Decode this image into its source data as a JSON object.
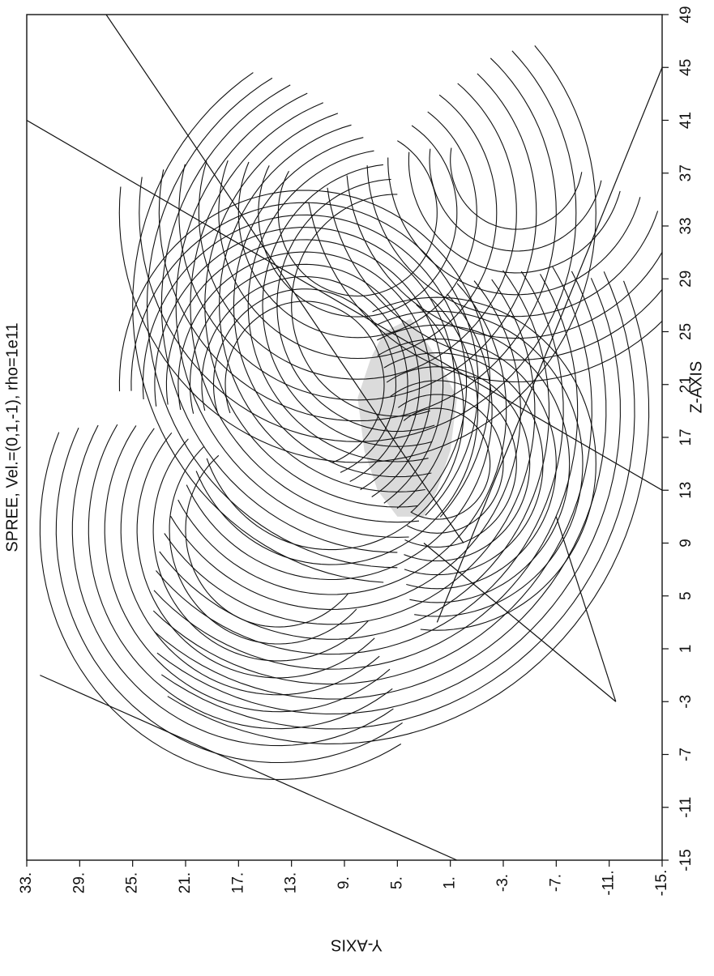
{
  "chart_data": {
    "type": "line",
    "title": "SPREE, Vel.=(0,1,-1), rho=1e11",
    "xlabel": "Z-AXIS",
    "ylabel": "Y-AXIS",
    "x_ticks": [
      "-15",
      "-11",
      "-7",
      "-3",
      "1",
      "5",
      "9",
      "13",
      "17",
      "21",
      "25",
      "29",
      "33",
      "37",
      "41",
      "45",
      "49"
    ],
    "y_ticks": [
      "33.",
      "29.",
      "25.",
      "21.",
      "17.",
      "13.",
      "9.",
      "5.",
      "1.",
      "-3.",
      "-7.",
      "-11.",
      "-15."
    ],
    "xlim": [
      -15,
      49
    ],
    "ylim": [
      -15,
      33
    ],
    "grid": false,
    "orientation": "rotated 90 degrees counter-clockwise",
    "line_color": "#111111",
    "shadow_region_color": "#bdbdbd",
    "trajectory_families": [
      {
        "name": "",
        "center": [
          19,
          10
        ],
        "radii": [
          10,
          24
        ],
        "count": 14,
        "start_deg": 110,
        "end_deg": 320
      },
      {
        "name": "",
        "center": [
          21,
          12
        ],
        "radii": [
          6,
          14
        ],
        "count": 10,
        "start_deg": 200,
        "end_deg": 470
      },
      {
        "name": "",
        "center": [
          27,
          5
        ],
        "radii": [
          8,
          20
        ],
        "count": 12,
        "start_deg": 0,
        "end_deg": 200
      },
      {
        "name": "",
        "center": [
          34,
          8
        ],
        "radii": [
          6,
          18
        ],
        "count": 9,
        "start_deg": 60,
        "end_deg": 330
      },
      {
        "name": "",
        "center": [
          15,
          2
        ],
        "radii": [
          4,
          12
        ],
        "count": 9,
        "start_deg": 150,
        "end_deg": 400
      },
      {
        "name": "",
        "center": [
          38,
          -4
        ],
        "radii": [
          5,
          16
        ],
        "count": 8,
        "start_deg": 80,
        "end_deg": 260
      },
      {
        "name": "",
        "center": [
          10,
          14
        ],
        "radii": [
          7,
          18
        ],
        "count": 10,
        "start_deg": 40,
        "end_deg": 230
      }
    ],
    "straight_rays": [
      [
        [
          -15,
          0.5
        ],
        [
          -1,
          32
        ]
      ],
      [
        [
          -3,
          -11.5
        ],
        [
          9,
          3
        ]
      ],
      [
        [
          -3,
          -11.5
        ],
        [
          11,
          -7
        ]
      ],
      [
        [
          9,
          0
        ],
        [
          49,
          27
        ]
      ],
      [
        [
          3,
          2
        ],
        [
          45,
          -15
        ]
      ],
      [
        [
          13,
          -15
        ],
        [
          41,
          33
        ]
      ]
    ],
    "shadow_region": [
      [
        13,
        2
      ],
      [
        16,
        1
      ],
      [
        20,
        0.5
      ],
      [
        23,
        2
      ],
      [
        26,
        4
      ],
      [
        25,
        6
      ],
      [
        23,
        7
      ],
      [
        20,
        8
      ],
      [
        16,
        7.5
      ],
      [
        13,
        6.5
      ],
      [
        11,
        5
      ],
      [
        11,
        3
      ]
    ]
  }
}
